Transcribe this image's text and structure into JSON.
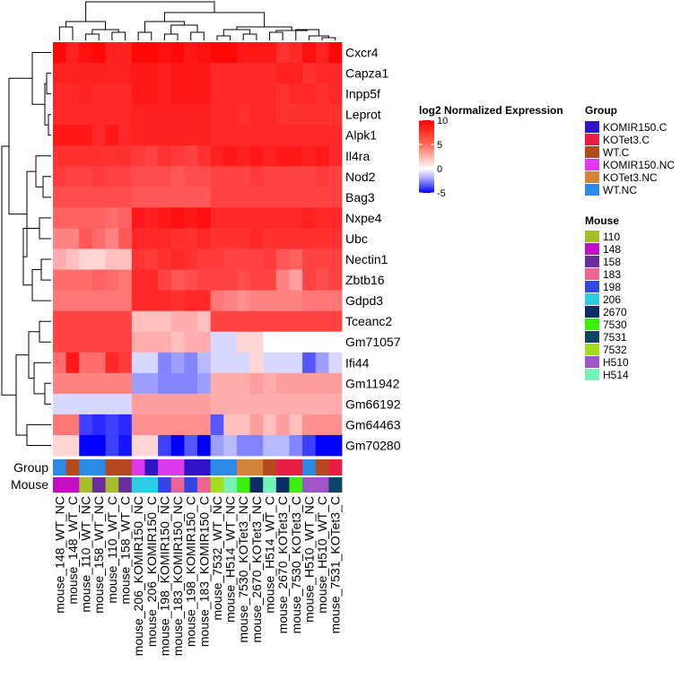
{
  "chart_data": {
    "type": "heatmap",
    "title": "",
    "genes": [
      "Cxcr4",
      "Capza1",
      "Inpp5f",
      "Leprot",
      "Alpk1",
      "Il4ra",
      "Nod2",
      "Bag3",
      "Nxpe4",
      "Ubc",
      "Nectin1",
      "Zbtb16",
      "Gdpd3",
      "Tceanc2",
      "Gm71057",
      "Ifi44",
      "Gm11942",
      "Gm66192",
      "Gm64463",
      "Gm70280"
    ],
    "samples": [
      "mouse_148_WT_NC",
      "mouse_148_WT_C",
      "mouse_110_WT_NC",
      "mouse_158_WT_NC",
      "mouse_110_WT_C",
      "mouse_158_WT_C",
      "mouse_206_KOMIR150_NC",
      "mouse_206_KOMIR150_C",
      "mouse_198_KOMIR150_NC",
      "mouse_183_KOMIR150_NC",
      "mouse_198_KOMIR150_C",
      "mouse_183_KOMIR150_C",
      "mouse_7532_WT_NC",
      "mouse_H514_WT_NC",
      "mouse_7530_KOTet3_NC",
      "mouse_2670_KOTet3_NC",
      "mouse_H514_WT_C",
      "mouse_2670_KOTet3_C",
      "mouse_7530_KOTet3_C",
      "mouse_H510_WT_NC",
      "mouse_H510_WT_C",
      "mouse_7531_KOTet3_C"
    ],
    "values": [
      [
        9.5,
        8,
        9,
        9.5,
        8,
        8,
        9.5,
        9.5,
        9,
        9.5,
        8.5,
        9,
        9.5,
        9.5,
        8.5,
        8.5,
        8.5,
        7,
        7.5,
        9,
        8,
        9.5
      ],
      [
        8,
        8,
        8,
        8,
        8,
        8,
        8.5,
        8.5,
        8,
        8.5,
        8.5,
        8.5,
        7.5,
        7.5,
        7.5,
        7.5,
        7.5,
        8,
        8,
        7,
        7.5,
        7.5
      ],
      [
        7.5,
        7.5,
        8,
        7.5,
        7.5,
        7.5,
        8.5,
        8.5,
        8,
        8.5,
        8.5,
        8.5,
        7.5,
        7.5,
        7.5,
        7.5,
        7.5,
        7,
        7.5,
        7.5,
        7,
        7.5
      ],
      [
        7.5,
        7.5,
        7.5,
        7.5,
        7.5,
        7.5,
        8,
        8,
        8,
        8,
        8,
        8,
        7.5,
        7.5,
        7,
        7.5,
        7.5,
        7,
        7,
        7,
        7,
        7
      ],
      [
        8.5,
        8.5,
        8.5,
        7.5,
        8.5,
        7.5,
        8,
        8,
        8,
        8,
        8,
        8,
        7.5,
        7.5,
        7.5,
        7.5,
        7.5,
        7.5,
        7.5,
        7.5,
        7.5,
        7.5
      ],
      [
        7,
        7,
        7,
        7,
        7,
        7,
        6.5,
        6,
        7,
        6.5,
        6,
        7,
        8,
        8.5,
        8,
        8.5,
        8,
        8.5,
        8.5,
        8,
        8.5,
        7.5
      ],
      [
        6.5,
        6,
        6,
        6.5,
        6,
        6,
        5.5,
        5.5,
        5.5,
        5,
        5.5,
        5.5,
        6,
        6,
        6,
        6.5,
        6,
        6,
        6,
        6,
        6.5,
        6
      ],
      [
        5.5,
        5.5,
        5.5,
        5.5,
        5.5,
        5.5,
        5,
        5,
        5,
        5,
        5,
        5,
        6,
        6,
        6,
        6,
        6,
        6,
        6,
        6,
        6,
        6
      ],
      [
        4.5,
        4.5,
        4.5,
        4.5,
        4,
        4.5,
        8.5,
        8,
        8.5,
        9,
        8.5,
        9,
        7.5,
        7.5,
        7.5,
        7.5,
        7.5,
        7.5,
        7.5,
        8,
        7.5,
        7.5
      ],
      [
        3,
        3,
        5,
        4,
        3,
        5,
        7.5,
        7.5,
        7.5,
        7,
        7,
        7.5,
        7,
        7,
        7,
        7.5,
        7,
        7,
        7,
        7,
        7,
        7
      ],
      [
        1.5,
        1,
        0.5,
        0.5,
        1,
        1,
        7,
        6.5,
        7,
        7.5,
        7,
        6.5,
        6.5,
        6,
        6,
        6,
        6.5,
        5,
        4.5,
        6,
        6,
        6
      ],
      [
        4,
        4,
        4,
        4.5,
        4,
        3.5,
        7.5,
        7.5,
        6,
        5,
        5.5,
        6,
        6,
        6,
        5.5,
        6,
        6,
        3,
        2,
        6,
        5.5,
        6
      ],
      [
        3.5,
        3.5,
        3.5,
        3.5,
        3.5,
        3.5,
        7.5,
        7.5,
        7.5,
        7,
        7.5,
        7.5,
        3.5,
        3,
        2.5,
        3,
        3,
        3,
        3,
        3.5,
        3.5,
        3.5
      ],
      [
        6,
        6,
        6,
        6,
        6,
        6,
        1,
        1,
        1,
        1.5,
        1.5,
        1,
        6,
        6,
        6,
        6,
        6,
        6,
        6,
        6,
        6,
        6
      ],
      [
        6,
        6,
        6,
        6,
        6,
        6,
        1.5,
        1.5,
        1.5,
        1,
        1.5,
        1.5,
        -0.5,
        -0.5,
        0.5,
        0.5,
        0,
        0,
        0,
        0,
        0,
        0
      ],
      [
        4,
        8.5,
        4,
        4,
        7.5,
        6.5,
        -0.5,
        -0.5,
        -2,
        -1.5,
        -2,
        -1,
        -0.5,
        -0.5,
        -0.5,
        0.5,
        -0.5,
        -0.5,
        -0.5,
        -3,
        -1.5,
        -0.5
      ],
      [
        3,
        3,
        3,
        3,
        3,
        3,
        -1.5,
        -1.5,
        -2,
        -2,
        -2,
        -1.5,
        1.5,
        1.5,
        1.5,
        2,
        1.5,
        2,
        2,
        2,
        2,
        2
      ],
      [
        -0.5,
        -0.5,
        -0.5,
        -0.5,
        -0.5,
        -0.5,
        2,
        2,
        2,
        2,
        2,
        2,
        1.5,
        1.5,
        1.5,
        1.5,
        1.5,
        1.5,
        1.5,
        1.5,
        1.5,
        1.5
      ],
      [
        3.5,
        3.5,
        -3.5,
        -4,
        -3.5,
        -4,
        2.5,
        2.5,
        2.5,
        2.5,
        2.5,
        2.5,
        -3,
        1,
        1,
        2,
        1,
        2,
        1,
        2.5,
        2.5,
        2.5
      ],
      [
        0.5,
        0.5,
        -5,
        -5,
        -3.5,
        -4.5,
        0.5,
        0.5,
        -3.5,
        -5,
        -3,
        -5,
        -1.5,
        -1,
        -2,
        -2,
        -1,
        -1,
        -2,
        -3.5,
        -5,
        -5
      ]
    ],
    "color_scale": {
      "title": "log2 Normalized Expression",
      "ticks": [
        10,
        5,
        0,
        -5
      ],
      "min": -5,
      "max": 10,
      "low_color": "#0000ff",
      "mid_color": "#ffffff",
      "high_color": "#ff0000"
    },
    "annotations": {
      "rows": [
        {
          "label": "Group",
          "values": [
            "WT.NC",
            "WT.C",
            "WT.NC",
            "WT.NC",
            "WT.C",
            "WT.C",
            "KOMIR150.NC",
            "KOMIR150.C",
            "KOMIR150.NC",
            "KOMIR150.NC",
            "KOMIR150.C",
            "KOMIR150.C",
            "WT.NC",
            "WT.NC",
            "KOTet3.NC",
            "KOTet3.NC",
            "WT.C",
            "KOTet3.C",
            "KOTet3.C",
            "WT.NC",
            "WT.C",
            "KOTet3.C"
          ]
        },
        {
          "label": "Mouse",
          "values": [
            "148",
            "148",
            "110",
            "158",
            "110",
            "158",
            "206",
            "206",
            "198",
            "183",
            "198",
            "183",
            "7532",
            "H514",
            "7530",
            "2670",
            "H514",
            "2670",
            "7530",
            "H510",
            "H510",
            "7531"
          ]
        }
      ]
    },
    "legends": {
      "group": {
        "title": "Group",
        "items": [
          {
            "label": "KOMIR150.C",
            "color": "#3014c6"
          },
          {
            "label": "KOTet3.C",
            "color": "#e81e45"
          },
          {
            "label": "WT.C",
            "color": "#b4491d"
          },
          {
            "label": "KOMIR150.NC",
            "color": "#dc3aea"
          },
          {
            "label": "KOTet3.NC",
            "color": "#d4833a"
          },
          {
            "label": "WT.NC",
            "color": "#2a8ae6"
          }
        ]
      },
      "mouse": {
        "title": "Mouse",
        "items": [
          {
            "label": "110",
            "color": "#a6be2c"
          },
          {
            "label": "148",
            "color": "#c20fc3"
          },
          {
            "label": "158",
            "color": "#6b2c9e"
          },
          {
            "label": "183",
            "color": "#ec6394"
          },
          {
            "label": "198",
            "color": "#3446e0"
          },
          {
            "label": "206",
            "color": "#2bcde2"
          },
          {
            "label": "2670",
            "color": "#0c2c63"
          },
          {
            "label": "7530",
            "color": "#3af00b"
          },
          {
            "label": "7531",
            "color": "#0e4466"
          },
          {
            "label": "7532",
            "color": "#a3de1c"
          },
          {
            "label": "H510",
            "color": "#9e55c9"
          },
          {
            "label": "H514",
            "color": "#74f2b8"
          }
        ]
      }
    }
  }
}
